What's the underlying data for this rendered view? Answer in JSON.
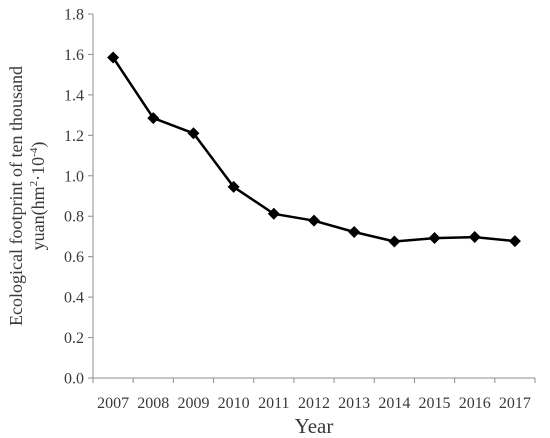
{
  "chart_data": {
    "type": "line",
    "x": [
      "2007",
      "2008",
      "2009",
      "2010",
      "2011",
      "2012",
      "2013",
      "2014",
      "2015",
      "2016",
      "2017"
    ],
    "series": [
      {
        "values": [
          1.585,
          1.285,
          1.21,
          0.945,
          0.812,
          0.778,
          0.722,
          0.675,
          0.692,
          0.697,
          0.677
        ]
      }
    ],
    "xlabel": "Year",
    "ylabel_line1": "Ecological footprint of ten thousand",
    "ylabel_line2_base": "yuan(hm",
    "ylabel_sup1": "2",
    "ylabel_mid": "·10",
    "ylabel_sup2": "-4",
    "ylabel_end": ")",
    "ylim": [
      0,
      1.8
    ],
    "yticks": [
      "0.0",
      "0.2",
      "0.4",
      "0.6",
      "0.8",
      "1.0",
      "1.2",
      "1.4",
      "1.6",
      "1.8"
    ],
    "grid": false,
    "marker": "diamond",
    "line_color": "#000000"
  }
}
